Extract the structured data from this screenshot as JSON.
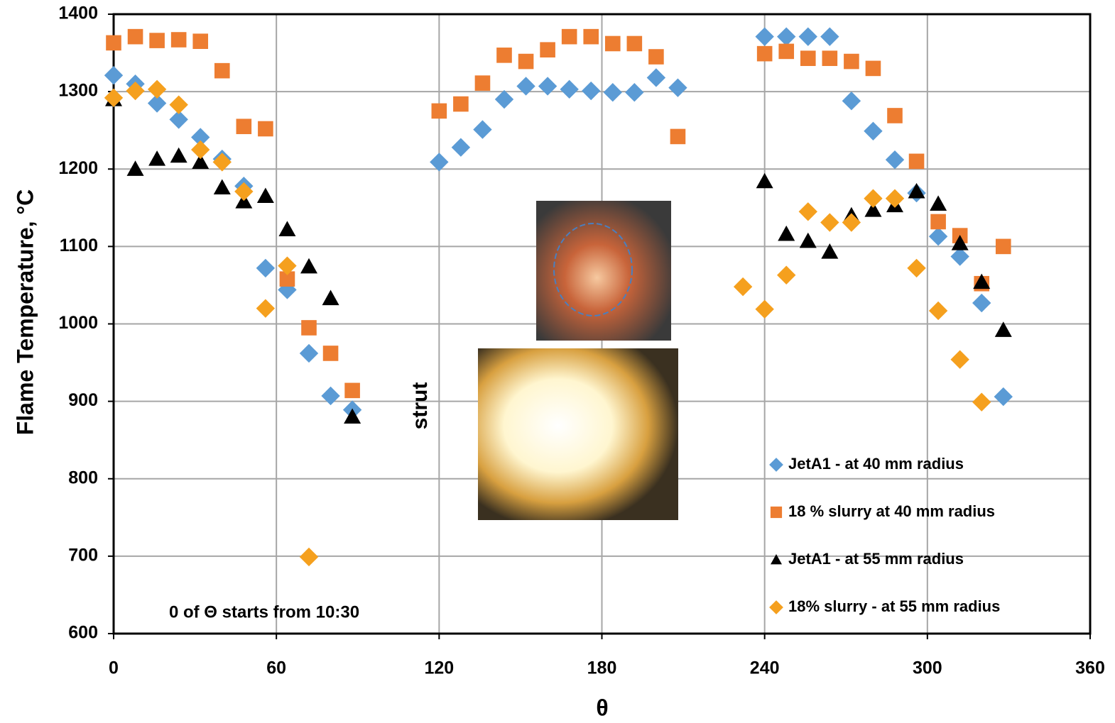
{
  "chart_data": {
    "type": "scatter",
    "x_label": "θ",
    "y_label": "Flame Temperature, °C",
    "annotations": [
      "strut",
      "0 of Θ starts from 10:30"
    ],
    "xlim": [
      0,
      360
    ],
    "xticks": [
      0,
      60,
      120,
      180,
      240,
      300,
      360
    ],
    "ylim": [
      600,
      1400
    ],
    "yticks": [
      600,
      700,
      800,
      900,
      1000,
      1100,
      1200,
      1300,
      1400
    ],
    "grid": true,
    "legend": "lower right",
    "series": [
      {
        "name": "JetA1 - at 40 mm radius",
        "color": "#5b9bd5",
        "marker": "diamond",
        "x": [
          0,
          8,
          16,
          24,
          32,
          40,
          48,
          56,
          64,
          72,
          80,
          88,
          120,
          128,
          136,
          144,
          152,
          160,
          168,
          176,
          184,
          192,
          200,
          208,
          240,
          248,
          256,
          264,
          272,
          280,
          288,
          296,
          304,
          312,
          320,
          328
        ],
        "values": [
          1321,
          1310,
          1285,
          1264,
          1241,
          1213,
          1178,
          1072,
          1044,
          962,
          907,
          889,
          1209,
          1228,
          1251,
          1290,
          1307,
          1307,
          1303,
          1301,
          1299,
          1299,
          1318,
          1305,
          1371,
          1371,
          1371,
          1371,
          1288,
          1249,
          1212,
          1169,
          1113,
          1087,
          1027,
          906
        ]
      },
      {
        "name": "18 % slurry at 40 mm radius",
        "color": "#ed7d31",
        "marker": "square",
        "x": [
          0,
          8,
          16,
          24,
          32,
          40,
          48,
          56,
          64,
          72,
          80,
          88,
          120,
          128,
          136,
          144,
          152,
          160,
          168,
          176,
          184,
          192,
          200,
          208,
          240,
          248,
          256,
          264,
          272,
          280,
          288,
          296,
          304,
          312,
          320,
          328
        ],
        "values": [
          1363,
          1371,
          1366,
          1367,
          1365,
          1327,
          1255,
          1252,
          1058,
          995,
          962,
          914,
          1275,
          1284,
          1311,
          1347,
          1339,
          1354,
          1371,
          1371,
          1362,
          1362,
          1345,
          1242,
          1349,
          1352,
          1343,
          1343,
          1339,
          1330,
          1269,
          1210,
          1132,
          1114,
          1052,
          1100
        ]
      },
      {
        "name": "JetA1 - at 55 mm radius",
        "color": "#000000",
        "marker": "triangle",
        "x": [
          0,
          8,
          16,
          24,
          32,
          40,
          48,
          56,
          64,
          72,
          80,
          88,
          240,
          248,
          256,
          264,
          272,
          280,
          288,
          296,
          304,
          312,
          320,
          328
        ],
        "values": [
          1290,
          1200,
          1213,
          1217,
          1209,
          1176,
          1158,
          1165,
          1122,
          1074,
          1033,
          880,
          1184,
          1116,
          1107,
          1093,
          1140,
          1147,
          1153,
          1171,
          1155,
          1104,
          1054,
          992
        ]
      },
      {
        "name": "18% slurry - at 55 mm radius",
        "color": "#f5a01e",
        "marker": "diamond",
        "x": [
          0,
          8,
          16,
          24,
          32,
          40,
          48,
          56,
          64,
          72,
          232,
          240,
          248,
          256,
          264,
          272,
          280,
          288,
          296,
          304,
          312,
          320
        ],
        "values": [
          1292,
          1301,
          1303,
          1283,
          1225,
          1209,
          1171,
          1020,
          1075,
          699,
          1048,
          1019,
          1063,
          1145,
          1131,
          1131,
          1162,
          1162,
          1072,
          1017,
          954,
          899
        ]
      }
    ]
  }
}
